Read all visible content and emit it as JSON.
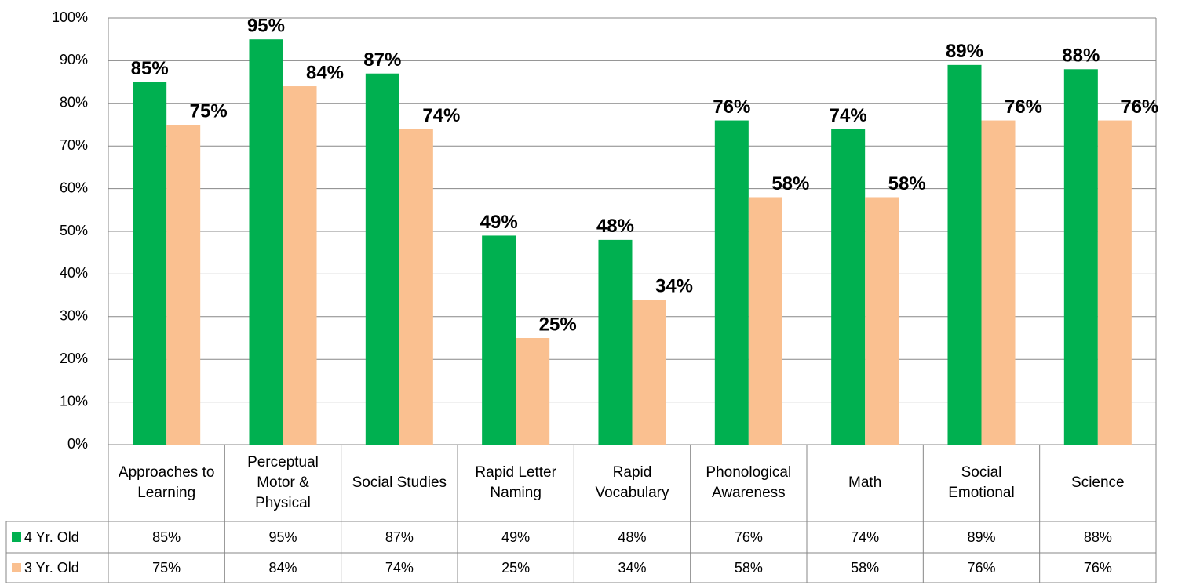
{
  "chart_data": {
    "type": "bar",
    "categories": [
      "Approaches to Learning",
      "Perceptual Motor & Physical",
      "Social Studies",
      "Rapid Letter Naming",
      "Rapid Vocabulary",
      "Phonological Awareness",
      "Math",
      "Social Emotional",
      "Science"
    ],
    "series": [
      {
        "name": "4 Yr. Old",
        "color": "#00b050",
        "values": [
          85,
          95,
          87,
          49,
          48,
          76,
          74,
          89,
          88
        ],
        "value_labels": [
          "85%",
          "95%",
          "87%",
          "49%",
          "48%",
          "76%",
          "74%",
          "89%",
          "88%"
        ]
      },
      {
        "name": "3 Yr. Old",
        "color": "#fac090",
        "values": [
          75,
          84,
          74,
          25,
          34,
          58,
          58,
          76,
          76
        ],
        "value_labels": [
          "75%",
          "84%",
          "74%",
          "25%",
          "34%",
          "58%",
          "58%",
          "76%",
          "76%"
        ]
      }
    ],
    "ylim": [
      0,
      100
    ],
    "yticks": [
      {
        "value": 0,
        "label": "0%"
      },
      {
        "value": 10,
        "label": "10%"
      },
      {
        "value": 20,
        "label": "20%"
      },
      {
        "value": 30,
        "label": "30%"
      },
      {
        "value": 40,
        "label": "40%"
      },
      {
        "value": 50,
        "label": "50%"
      },
      {
        "value": 60,
        "label": "60%"
      },
      {
        "value": 70,
        "label": "70%"
      },
      {
        "value": 80,
        "label": "80%"
      },
      {
        "value": 90,
        "label": "90%"
      },
      {
        "value": 100,
        "label": "100%"
      }
    ],
    "grid": true
  }
}
